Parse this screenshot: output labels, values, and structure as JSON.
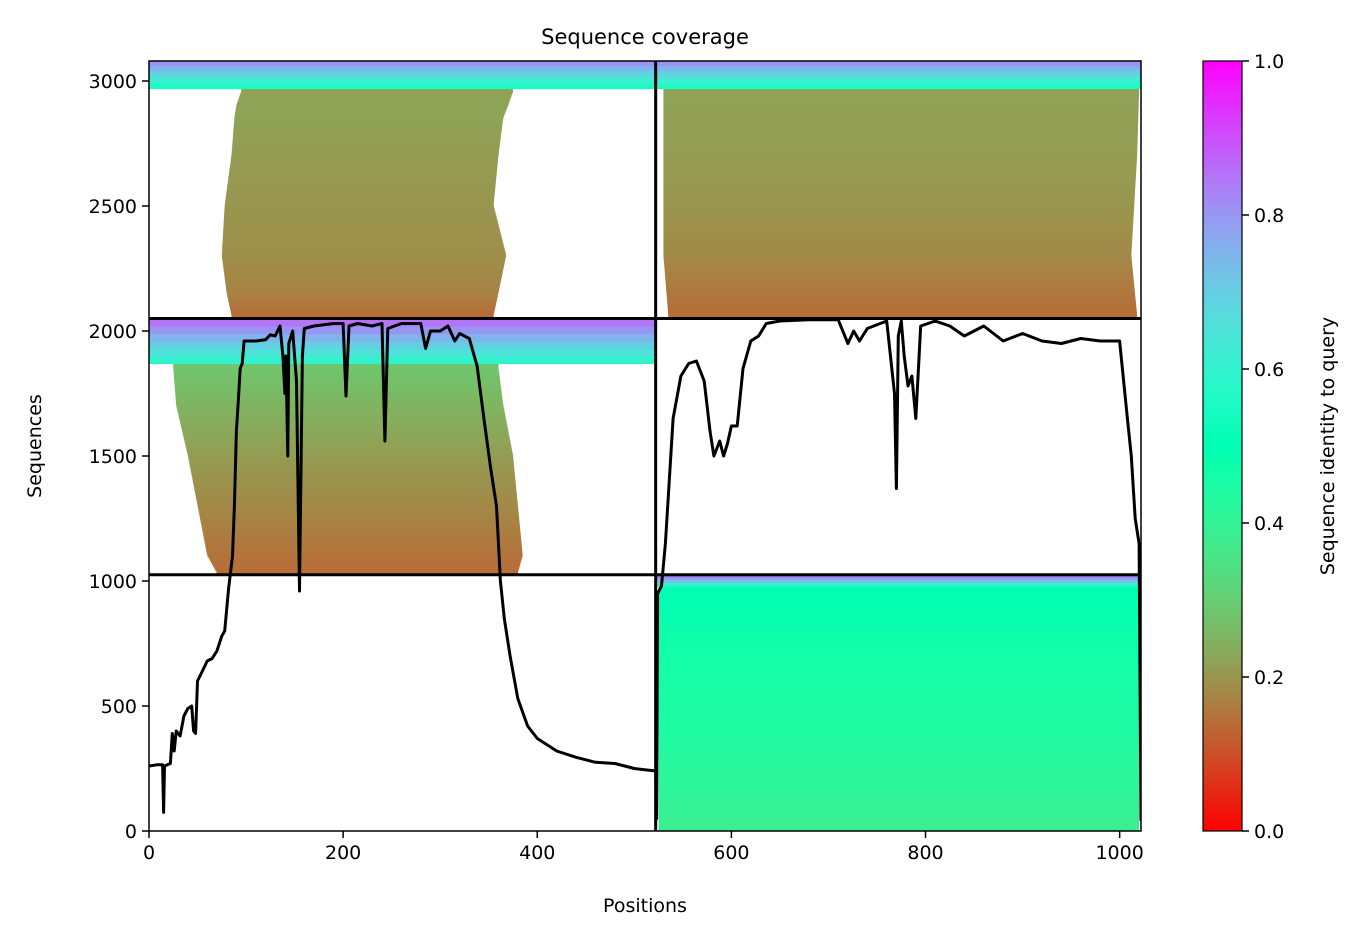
{
  "chart_data": {
    "type": "heatmap",
    "title": "Sequence coverage",
    "xlabel": "Positions",
    "ylabel": "Sequences",
    "xlim": [
      0,
      1022
    ],
    "ylim": [
      0,
      3080
    ],
    "x_ticks": [
      0,
      200,
      400,
      600,
      800,
      1000
    ],
    "y_ticks": [
      0,
      500,
      1000,
      1500,
      2000,
      2500,
      3000
    ],
    "colorbar": {
      "label": "Sequence identity to query",
      "cmap": "rainbow_r",
      "range": [
        0,
        1
      ],
      "ticks": [
        0.0,
        0.2,
        0.4,
        0.6,
        0.8,
        1.0
      ],
      "tick_labels": [
        "0.0",
        "0.2",
        "0.4",
        "0.6",
        "0.8",
        "1.0"
      ]
    },
    "blocks": [
      {
        "name": "chain_1_block_a",
        "x_range": [
          0,
          522
        ],
        "y_range": [
          2050,
          3080
        ],
        "top_band": {
          "y_from": 2970,
          "identity": 0.55
        },
        "rows": [
          {
            "y": 2955,
            "x_start": 95,
            "x_end": 375,
            "identity": 0.22
          },
          {
            "y": 2900,
            "x_start": 90,
            "x_end": 370,
            "identity": 0.22
          },
          {
            "y": 2850,
            "x_start": 88,
            "x_end": 365,
            "identity": 0.22
          },
          {
            "y": 2700,
            "x_start": 85,
            "x_end": 360,
            "identity": 0.21
          },
          {
            "y": 2500,
            "x_start": 78,
            "x_end": 355,
            "identity": 0.2
          },
          {
            "y": 2300,
            "x_start": 75,
            "x_end": 368,
            "identity": 0.19
          },
          {
            "y": 2150,
            "x_start": 80,
            "x_end": 360,
            "identity": 0.17
          },
          {
            "y": 2060,
            "x_start": 85,
            "x_end": 355,
            "identity": 0.14
          }
        ]
      },
      {
        "name": "chain_2_block_a",
        "x_range": [
          522,
          1022
        ],
        "y_range": [
          2050,
          3080
        ],
        "top_band": {
          "y_from": 2970,
          "identity": 0.55
        },
        "rows": [
          {
            "y": 2955,
            "x_start": 530,
            "x_end": 1020,
            "identity": 0.22
          },
          {
            "y": 2700,
            "x_start": 530,
            "x_end": 1018,
            "identity": 0.21
          },
          {
            "y": 2500,
            "x_start": 530,
            "x_end": 1015,
            "identity": 0.2
          },
          {
            "y": 2300,
            "x_start": 530,
            "x_end": 1012,
            "identity": 0.18
          },
          {
            "y": 2060,
            "x_start": 535,
            "x_end": 1018,
            "identity": 0.14
          }
        ]
      },
      {
        "name": "chain_1_block_b",
        "x_range": [
          0,
          522
        ],
        "y_range": [
          1025,
          2050
        ],
        "top_band": {
          "y_from": 1870,
          "identity": 0.6
        },
        "rows": [
          {
            "y": 1850,
            "x_start": 25,
            "x_end": 360,
            "identity": 0.28
          },
          {
            "y": 1700,
            "x_start": 28,
            "x_end": 365,
            "identity": 0.25
          },
          {
            "y": 1500,
            "x_start": 40,
            "x_end": 375,
            "identity": 0.21
          },
          {
            "y": 1300,
            "x_start": 50,
            "x_end": 380,
            "identity": 0.18
          },
          {
            "y": 1100,
            "x_start": 60,
            "x_end": 385,
            "identity": 0.15
          },
          {
            "y": 1030,
            "x_start": 70,
            "x_end": 380,
            "identity": 0.14
          }
        ]
      },
      {
        "name": "chain_2_block_b",
        "x_range": [
          522,
          1022
        ],
        "y_range": [
          0,
          1025
        ],
        "top_band": {
          "y_from": 980,
          "identity": 0.6
        },
        "rows": [
          {
            "y": 950,
            "x_start": 525,
            "x_end": 1020,
            "identity": 0.5
          },
          {
            "y": 700,
            "x_start": 525,
            "x_end": 1020,
            "identity": 0.46
          },
          {
            "y": 400,
            "x_start": 525,
            "x_end": 1020,
            "identity": 0.44
          },
          {
            "y": 100,
            "x_start": 525,
            "x_end": 1020,
            "identity": 0.4
          },
          {
            "y": 0,
            "x_start": 525,
            "x_end": 1020,
            "identity": 0.38
          }
        ]
      }
    ],
    "block_boundaries": {
      "x": [
        522
      ],
      "y": [
        1025,
        2050
      ]
    },
    "coverage_line": {
      "name": "coverage",
      "color": "#000000",
      "points": [
        [
          0,
          260
        ],
        [
          8,
          265
        ],
        [
          14,
          265
        ],
        [
          15,
          75
        ],
        [
          16,
          260
        ],
        [
          22,
          270
        ],
        [
          24,
          390
        ],
        [
          26,
          320
        ],
        [
          28,
          400
        ],
        [
          32,
          380
        ],
        [
          36,
          460
        ],
        [
          40,
          490
        ],
        [
          44,
          500
        ],
        [
          46,
          400
        ],
        [
          48,
          390
        ],
        [
          50,
          600
        ],
        [
          55,
          640
        ],
        [
          60,
          680
        ],
        [
          65,
          690
        ],
        [
          70,
          720
        ],
        [
          75,
          780
        ],
        [
          78,
          800
        ],
        [
          82,
          970
        ],
        [
          86,
          1100
        ],
        [
          88,
          1300
        ],
        [
          90,
          1600
        ],
        [
          92,
          1720
        ],
        [
          94,
          1850
        ],
        [
          96,
          1870
        ],
        [
          98,
          1960
        ],
        [
          110,
          1960
        ],
        [
          120,
          1965
        ],
        [
          125,
          1985
        ],
        [
          130,
          1980
        ],
        [
          135,
          2020
        ],
        [
          138,
          1900
        ],
        [
          140,
          1750
        ],
        [
          141,
          1900
        ],
        [
          143,
          1500
        ],
        [
          144,
          1950
        ],
        [
          148,
          2000
        ],
        [
          152,
          1800
        ],
        [
          155,
          960
        ],
        [
          158,
          1900
        ],
        [
          160,
          2010
        ],
        [
          170,
          2020
        ],
        [
          190,
          2030
        ],
        [
          200,
          2030
        ],
        [
          203,
          1740
        ],
        [
          206,
          2020
        ],
        [
          215,
          2030
        ],
        [
          230,
          2020
        ],
        [
          240,
          2030
        ],
        [
          243,
          1560
        ],
        [
          246,
          2010
        ],
        [
          260,
          2030
        ],
        [
          280,
          2030
        ],
        [
          285,
          1930
        ],
        [
          290,
          2000
        ],
        [
          300,
          2000
        ],
        [
          308,
          2020
        ],
        [
          315,
          1960
        ],
        [
          320,
          1990
        ],
        [
          330,
          1970
        ],
        [
          338,
          1860
        ],
        [
          345,
          1650
        ],
        [
          352,
          1450
        ],
        [
          358,
          1300
        ],
        [
          362,
          1000
        ],
        [
          366,
          850
        ],
        [
          372,
          700
        ],
        [
          380,
          530
        ],
        [
          390,
          420
        ],
        [
          400,
          370
        ],
        [
          420,
          320
        ],
        [
          440,
          295
        ],
        [
          460,
          275
        ],
        [
          480,
          270
        ],
        [
          500,
          250
        ],
        [
          522,
          240
        ],
        [
          523,
          50
        ],
        [
          524,
          950
        ],
        [
          528,
          980
        ],
        [
          532,
          1150
        ],
        [
          540,
          1650
        ],
        [
          548,
          1820
        ],
        [
          556,
          1870
        ],
        [
          564,
          1880
        ],
        [
          572,
          1800
        ],
        [
          578,
          1600
        ],
        [
          582,
          1500
        ],
        [
          588,
          1560
        ],
        [
          592,
          1500
        ],
        [
          596,
          1550
        ],
        [
          600,
          1620
        ],
        [
          606,
          1620
        ],
        [
          612,
          1850
        ],
        [
          620,
          1960
        ],
        [
          628,
          1980
        ],
        [
          636,
          2030
        ],
        [
          650,
          2040
        ],
        [
          680,
          2045
        ],
        [
          710,
          2045
        ],
        [
          720,
          1950
        ],
        [
          726,
          2000
        ],
        [
          732,
          1960
        ],
        [
          740,
          2010
        ],
        [
          760,
          2040
        ],
        [
          768,
          1750
        ],
        [
          770,
          1370
        ],
        [
          772,
          1980
        ],
        [
          775,
          2040
        ],
        [
          778,
          1900
        ],
        [
          782,
          1780
        ],
        [
          786,
          1820
        ],
        [
          790,
          1650
        ],
        [
          795,
          2020
        ],
        [
          810,
          2040
        ],
        [
          825,
          2020
        ],
        [
          840,
          1980
        ],
        [
          860,
          2020
        ],
        [
          880,
          1960
        ],
        [
          900,
          1990
        ],
        [
          920,
          1960
        ],
        [
          940,
          1950
        ],
        [
          960,
          1970
        ],
        [
          980,
          1960
        ],
        [
          1000,
          1960
        ],
        [
          1008,
          1650
        ],
        [
          1012,
          1500
        ],
        [
          1016,
          1250
        ],
        [
          1020,
          1150
        ],
        [
          1022,
          40
        ]
      ]
    }
  }
}
